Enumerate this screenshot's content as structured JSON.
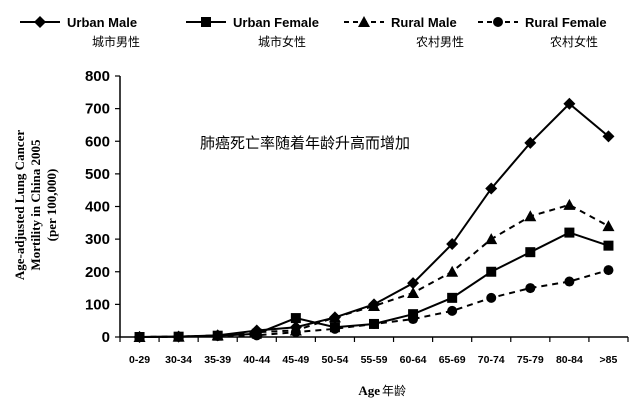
{
  "chart_data": {
    "type": "line",
    "title": "",
    "annotation": "肺癌死亡率随着年龄升高而增加",
    "xlabel": "Age",
    "xlabel_zh": "年龄",
    "ylabel_lines": [
      "Age-adjusted Lung Cancer",
      "Mortility in China 2005",
      "(per 100,000)"
    ],
    "ylim": [
      0,
      800
    ],
    "yticks": [
      "0",
      "100",
      "200",
      "300",
      "400",
      "500",
      "600",
      "700",
      "800"
    ],
    "categories": [
      "0-29",
      "30-34",
      "35-39",
      "40-44",
      "45-49",
      "50-54",
      "55-59",
      "60-64",
      "65-69",
      "70-74",
      "75-79",
      "80-84",
      ">85"
    ],
    "grid": false,
    "legend_position": "top",
    "series": [
      {
        "name": "Urban Male",
        "name_zh": "城市男性",
        "marker": "diamond",
        "dash": "solid",
        "values": [
          0,
          1,
          5,
          20,
          30,
          60,
          100,
          165,
          285,
          455,
          595,
          715,
          615
        ]
      },
      {
        "name": "Urban Female",
        "name_zh": "城市女性",
        "marker": "square",
        "dash": "solid",
        "values": [
          0,
          1,
          4,
          10,
          58,
          30,
          40,
          70,
          120,
          200,
          260,
          320,
          280
        ]
      },
      {
        "name": "Rural Male",
        "name_zh": "农村男性",
        "marker": "triangle",
        "dash": "dashed",
        "values": [
          0,
          1,
          5,
          15,
          20,
          60,
          95,
          135,
          200,
          300,
          370,
          405,
          340
        ]
      },
      {
        "name": "Rural Female",
        "name_zh": "农村女性",
        "marker": "circle",
        "dash": "dashed",
        "values": [
          0,
          1,
          3,
          5,
          15,
          25,
          40,
          55,
          80,
          120,
          150,
          170,
          205
        ]
      }
    ]
  }
}
